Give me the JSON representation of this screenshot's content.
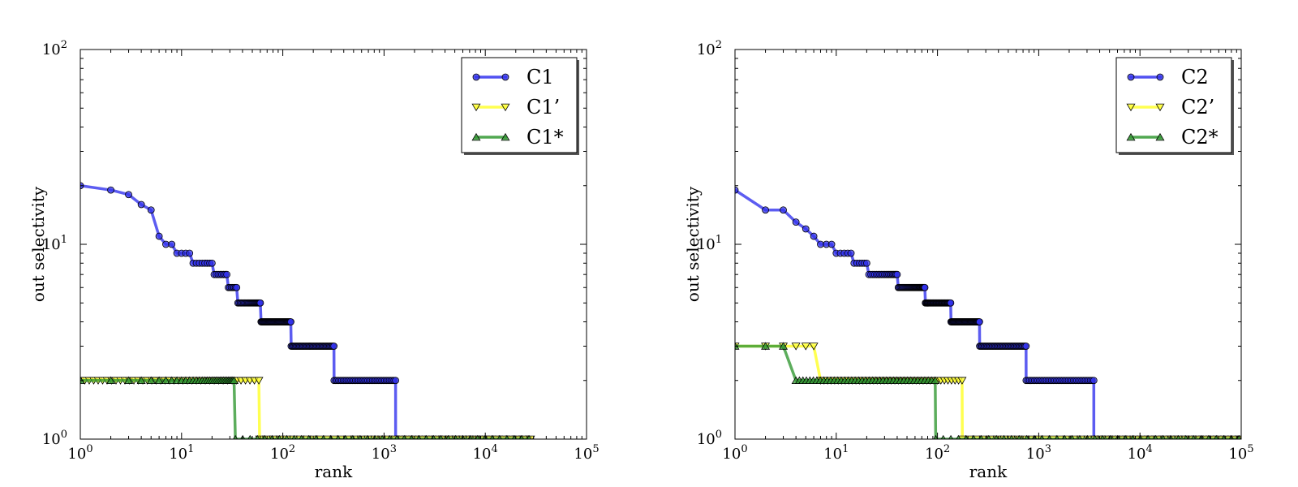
{
  "chart_data": [
    {
      "type": "line",
      "xscale": "log",
      "yscale": "log",
      "xlim": [
        1,
        100000
      ],
      "ylim": [
        1,
        100
      ],
      "xlabel": "rank",
      "ylabel": "out selectivity",
      "xticks": [
        {
          "value": 1,
          "base": "10",
          "exp": "0"
        },
        {
          "value": 10,
          "base": "10",
          "exp": "1"
        },
        {
          "value": 100,
          "base": "10",
          "exp": "2"
        },
        {
          "value": 1000,
          "base": "10",
          "exp": "3"
        },
        {
          "value": 10000,
          "base": "10",
          "exp": "4"
        },
        {
          "value": 100000,
          "base": "10",
          "exp": "5"
        }
      ],
      "yticks": [
        {
          "value": 1,
          "base": "10",
          "exp": "0"
        },
        {
          "value": 10,
          "base": "10",
          "exp": "1"
        },
        {
          "value": 100,
          "base": "10",
          "exp": "2"
        }
      ],
      "legend_position": "top-right",
      "series": [
        {
          "name": "C1",
          "color": "#3333ee",
          "marker": "circle",
          "steps": [
            {
              "x": [
                1,
                1
              ],
              "y": 20
            },
            {
              "x": [
                2,
                2
              ],
              "y": 19
            },
            {
              "x": [
                3,
                3
              ],
              "y": 18
            },
            {
              "x": [
                4,
                4
              ],
              "y": 16
            },
            {
              "x": [
                5,
                5
              ],
              "y": 15
            },
            {
              "x": [
                6,
                6
              ],
              "y": 11
            },
            {
              "x": [
                7,
                8
              ],
              "y": 10
            },
            {
              "x": [
                9,
                12
              ],
              "y": 9
            },
            {
              "x": [
                13,
                20
              ],
              "y": 8
            },
            {
              "x": [
                21,
                28
              ],
              "y": 7
            },
            {
              "x": [
                29,
                35
              ],
              "y": 6
            },
            {
              "x": [
                36,
                60
              ],
              "y": 5
            },
            {
              "x": [
                61,
                120
              ],
              "y": 4
            },
            {
              "x": [
                121,
                320
              ],
              "y": 3
            },
            {
              "x": [
                321,
                1300
              ],
              "y": 2
            },
            {
              "x": [
                1301,
                27000
              ],
              "y": 1
            }
          ]
        },
        {
          "name": "C1’",
          "color": "#ffff33",
          "marker": "triangle-down",
          "steps": [
            {
              "x": [
                1,
                58
              ],
              "y": 2
            },
            {
              "x": [
                59,
                28000
              ],
              "y": 1
            }
          ]
        },
        {
          "name": "C1*",
          "color": "#339933",
          "marker": "triangle-up",
          "steps": [
            {
              "x": [
                1,
                33
              ],
              "y": 2
            },
            {
              "x": [
                34,
                27000
              ],
              "y": 1
            }
          ]
        }
      ]
    },
    {
      "type": "line",
      "xscale": "log",
      "yscale": "log",
      "xlim": [
        1,
        100000
      ],
      "ylim": [
        1,
        100
      ],
      "xlabel": "rank",
      "ylabel": "out selectivity",
      "xticks": [
        {
          "value": 1,
          "base": "10",
          "exp": "0"
        },
        {
          "value": 10,
          "base": "10",
          "exp": "1"
        },
        {
          "value": 100,
          "base": "10",
          "exp": "2"
        },
        {
          "value": 1000,
          "base": "10",
          "exp": "3"
        },
        {
          "value": 10000,
          "base": "10",
          "exp": "4"
        },
        {
          "value": 100000,
          "base": "10",
          "exp": "5"
        }
      ],
      "yticks": [
        {
          "value": 1,
          "base": "10",
          "exp": "0"
        },
        {
          "value": 10,
          "base": "10",
          "exp": "1"
        },
        {
          "value": 100,
          "base": "10",
          "exp": "2"
        }
      ],
      "legend_position": "top-right",
      "series": [
        {
          "name": "C2",
          "color": "#3333ee",
          "marker": "circle",
          "steps": [
            {
              "x": [
                1,
                1
              ],
              "y": 19
            },
            {
              "x": [
                2,
                2
              ],
              "y": 15
            },
            {
              "x": [
                3,
                3
              ],
              "y": 15
            },
            {
              "x": [
                4,
                4
              ],
              "y": 13
            },
            {
              "x": [
                5,
                5
              ],
              "y": 12
            },
            {
              "x": [
                6,
                6
              ],
              "y": 11
            },
            {
              "x": [
                7,
                9
              ],
              "y": 10
            },
            {
              "x": [
                10,
                14
              ],
              "y": 9
            },
            {
              "x": [
                15,
                20
              ],
              "y": 8
            },
            {
              "x": [
                21,
                40
              ],
              "y": 7
            },
            {
              "x": [
                41,
                75
              ],
              "y": 6
            },
            {
              "x": [
                76,
                135
              ],
              "y": 5
            },
            {
              "x": [
                136,
                260
              ],
              "y": 4
            },
            {
              "x": [
                261,
                750
              ],
              "y": 3
            },
            {
              "x": [
                751,
                3500
              ],
              "y": 2
            },
            {
              "x": [
                3501,
                95000
              ],
              "y": 1
            }
          ]
        },
        {
          "name": "C2’",
          "color": "#ffff33",
          "marker": "triangle-down",
          "steps": [
            {
              "x": [
                1,
                6
              ],
              "y": 3
            },
            {
              "x": [
                7,
                175
              ],
              "y": 2
            },
            {
              "x": [
                176,
                100000
              ],
              "y": 1
            }
          ]
        },
        {
          "name": "C2*",
          "color": "#339933",
          "marker": "triangle-up",
          "steps": [
            {
              "x": [
                1,
                3
              ],
              "y": 3
            },
            {
              "x": [
                4,
                95
              ],
              "y": 2
            },
            {
              "x": [
                96,
                95000
              ],
              "y": 1
            }
          ]
        }
      ]
    }
  ]
}
